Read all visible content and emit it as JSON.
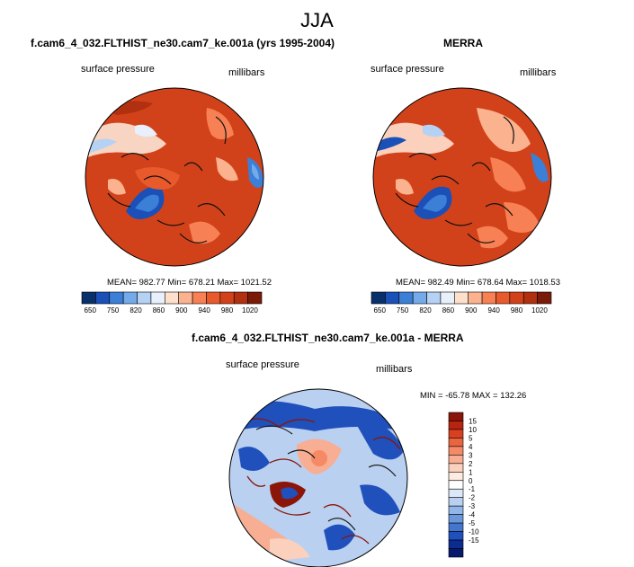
{
  "title": "JJA",
  "panels": {
    "left": {
      "title": "f.cam6_4_032.FLTHIST_ne30.cam7_ke.001a (yrs 1995-2004)",
      "variable": "surface pressure",
      "units": "millibars",
      "stats": "MEAN= 982.77  Min= 678.21  Max= 1021.52"
    },
    "right": {
      "title": "MERRA",
      "variable": "surface pressure",
      "units": "millibars",
      "stats": "MEAN= 982.49  Min= 678.64  Max= 1018.53"
    },
    "diff": {
      "title": "f.cam6_4_032.FLTHIST_ne30.cam7_ke.001a - MERRA",
      "variable": "surface pressure",
      "units": "millibars",
      "stats": "MIN = -65.78  MAX = 132.26"
    }
  },
  "chart_data": [
    {
      "type": "heatmap",
      "projection": "north polar stereographic",
      "title": "f.cam6_4_032.FLTHIST_ne30.cam7_ke.001a (yrs 1995-2004)",
      "variable": "surface pressure",
      "units": "millibars",
      "mean": 982.77,
      "min": 678.21,
      "max": 1021.52,
      "colorbar_ticks": [
        "650",
        "750",
        "820",
        "860",
        "900",
        "940",
        "980",
        "1020"
      ],
      "colorbar_colors": [
        "#08306b",
        "#1a50b8",
        "#3b7fd6",
        "#74aaea",
        "#b5d2f4",
        "#e8f0fb",
        "#fde0cc",
        "#fbb28f",
        "#f78154",
        "#e85a2c",
        "#d2421a",
        "#b0300f",
        "#7a1a08"
      ]
    },
    {
      "type": "heatmap",
      "projection": "north polar stereographic",
      "title": "MERRA",
      "variable": "surface pressure",
      "units": "millibars",
      "mean": 982.49,
      "min": 678.64,
      "max": 1018.53,
      "colorbar_ticks": [
        "650",
        "750",
        "820",
        "860",
        "900",
        "940",
        "980",
        "1020"
      ],
      "colorbar_colors": [
        "#08306b",
        "#1a50b8",
        "#3b7fd6",
        "#74aaea",
        "#b5d2f4",
        "#e8f0fb",
        "#fde0cc",
        "#fbb28f",
        "#f78154",
        "#e85a2c",
        "#d2421a",
        "#b0300f",
        "#7a1a08"
      ]
    },
    {
      "type": "heatmap",
      "projection": "north polar stereographic",
      "title": "f.cam6_4_032.FLTHIST_ne30.cam7_ke.001a - MERRA",
      "variable": "surface pressure",
      "units": "millibars",
      "min": -65.78,
      "max": 132.26,
      "colorbar_ticks": [
        "15",
        "10",
        "5",
        "4",
        "3",
        "2",
        "1",
        "0",
        "-1",
        "-2",
        "-3",
        "-4",
        "-5",
        "-10",
        "-15"
      ],
      "colorbar_colors": [
        "#8b1508",
        "#b82410",
        "#d8401f",
        "#ea6440",
        "#f48a66",
        "#f8ae92",
        "#fbd0bd",
        "#fdecdf",
        "#ffffff",
        "#dce8f7",
        "#b9d0f0",
        "#93b6e8",
        "#6b97dd",
        "#4475cf",
        "#2050bb",
        "#0c2c92",
        "#061a6e"
      ]
    }
  ]
}
